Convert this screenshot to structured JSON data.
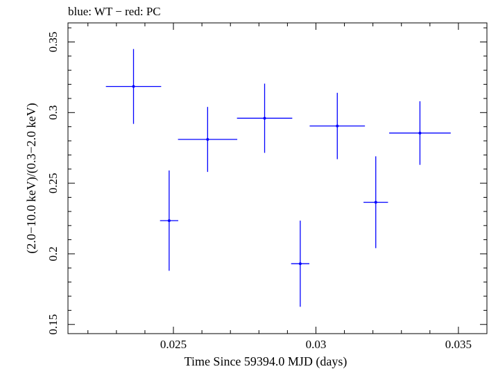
{
  "chart_data": {
    "type": "scatter",
    "title": "blue: WT − red: PC",
    "xlabel": "Time Since 59394.0 MJD (days)",
    "ylabel": "(2.0−10.0 keV)/(0.3−2.0 keV)",
    "xlim": [
      0.0213,
      0.036
    ],
    "ylim": [
      0.1435,
      0.3635
    ],
    "x_ticks": [
      0.025,
      0.03,
      0.035
    ],
    "x_tick_labels": [
      "0.025",
      "0.03",
      "0.035"
    ],
    "y_ticks": [
      0.15,
      0.2,
      0.25,
      0.3,
      0.35
    ],
    "y_tick_labels": [
      "0.15",
      "0.2",
      "0.25",
      "0.3",
      "0.35"
    ],
    "grid": false,
    "series": [
      {
        "name": "WT",
        "color": "#0000ff",
        "points": [
          {
            "x": 0.0236,
            "xerr": 0.00097,
            "y": 0.3185,
            "yerr_low": 0.0265,
            "yerr_high": 0.0265
          },
          {
            "x": 0.02485,
            "xerr": 0.00032,
            "y": 0.2235,
            "yerr_low": 0.0355,
            "yerr_high": 0.0355
          },
          {
            "x": 0.0262,
            "xerr": 0.00104,
            "y": 0.281,
            "yerr_low": 0.023,
            "yerr_high": 0.023
          },
          {
            "x": 0.0282,
            "xerr": 0.00097,
            "y": 0.296,
            "yerr_low": 0.0245,
            "yerr_high": 0.0245
          },
          {
            "x": 0.02945,
            "xerr": 0.00032,
            "y": 0.193,
            "yerr_low": 0.0305,
            "yerr_high": 0.0305
          },
          {
            "x": 0.03075,
            "xerr": 0.00097,
            "y": 0.2905,
            "yerr_low": 0.0235,
            "yerr_high": 0.0235
          },
          {
            "x": 0.0321,
            "xerr": 0.00043,
            "y": 0.2365,
            "yerr_low": 0.0325,
            "yerr_high": 0.0325
          },
          {
            "x": 0.03365,
            "xerr": 0.00108,
            "y": 0.2855,
            "yerr_low": 0.0225,
            "yerr_high": 0.0225
          }
        ]
      }
    ]
  }
}
